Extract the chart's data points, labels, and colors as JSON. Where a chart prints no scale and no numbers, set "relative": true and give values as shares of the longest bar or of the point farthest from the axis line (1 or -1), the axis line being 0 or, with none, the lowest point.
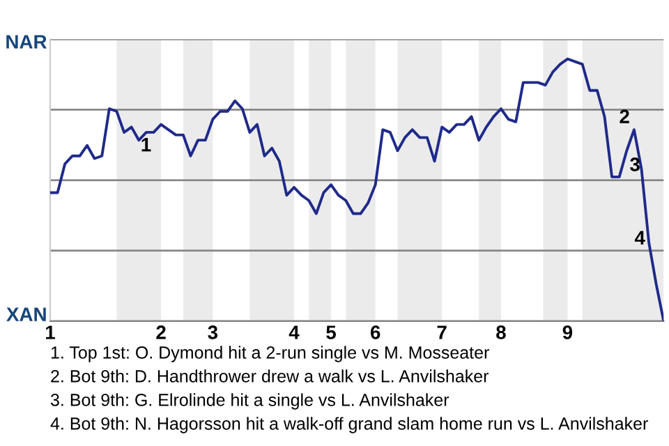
{
  "chart_data": {
    "type": "line",
    "relative": true,
    "categories": [
      "1",
      null,
      null,
      null,
      null,
      null,
      null,
      null,
      null,
      null,
      null,
      null,
      null,
      null,
      null,
      "2",
      null,
      null,
      null,
      null,
      null,
      null,
      "3",
      null,
      null,
      null,
      null,
      null,
      null,
      null,
      null,
      null,
      null,
      "4",
      null,
      null,
      null,
      null,
      "5",
      null,
      null,
      null,
      null,
      null,
      "6",
      null,
      null,
      null,
      null,
      null,
      null,
      null,
      null,
      "7",
      null,
      null,
      null,
      null,
      null,
      null,
      null,
      "8",
      null,
      null,
      null,
      null,
      null,
      null,
      null,
      null,
      "9",
      null,
      null,
      null,
      null,
      null,
      null,
      null,
      null,
      null,
      null,
      null,
      null,
      null
    ],
    "series": [
      {
        "color": "#1f2a8a",
        "values": [
          0.49,
          0.49,
          0.6,
          0.63,
          0.63,
          0.67,
          0.62,
          0.63,
          0.81,
          0.8,
          0.72,
          0.74,
          0.69,
          0.72,
          0.72,
          0.75,
          0.73,
          0.71,
          0.71,
          0.63,
          0.69,
          0.69,
          0.77,
          0.8,
          0.8,
          0.84,
          0.81,
          0.72,
          0.75,
          0.63,
          0.66,
          0.61,
          0.48,
          0.51,
          0.48,
          0.46,
          0.41,
          0.49,
          0.52,
          0.48,
          0.46,
          0.41,
          0.41,
          0.45,
          0.52,
          0.73,
          0.72,
          0.65,
          0.7,
          0.73,
          0.7,
          0.7,
          0.61,
          0.74,
          0.72,
          0.75,
          0.75,
          0.78,
          0.69,
          0.74,
          0.78,
          0.81,
          0.77,
          0.76,
          0.91,
          0.91,
          0.91,
          0.9,
          0.95,
          0.98,
          1,
          0.99,
          0.98,
          0.88,
          0.88,
          0.78,
          0.55,
          0.55,
          0.65,
          0.73,
          0.58,
          0.3,
          0.14,
          0
        ]
      }
    ],
    "grid": "y",
    "annotations": [
      "NAR",
      "XAN",
      "1",
      "2",
      "3",
      "4",
      "1. Top 1st: O. Dymond hit a 2-run single vs M. Mosseater",
      "2. Bot 9th: D. Handthrower drew a walk vs L. Anvilshaker",
      "3. Bot 9th: G. Elrolinde hit a single vs L. Anvilshaker",
      "4. Bot 9th: N. Hagorsson hit a walk-off grand slam home run vs L. Anvilshaker"
    ]
  }
}
